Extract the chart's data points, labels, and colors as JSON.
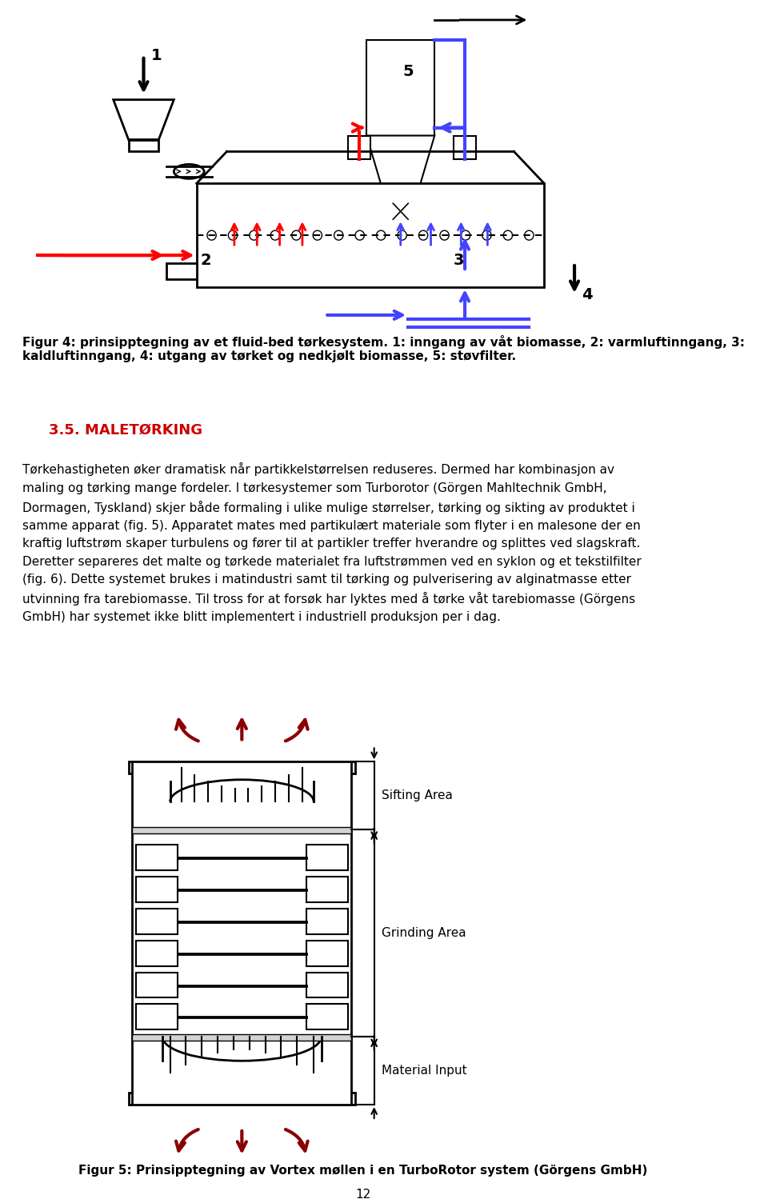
{
  "page_width": 9.6,
  "page_height": 15.04,
  "background_color": "#ffffff",
  "fig4_caption": "Figur 4: prinsipptegning av et fluid-bed tørkesystem. 1: inngang av våt biomasse, 2: varmluftinngang, 3:\nkaldluftinngang, 4: utgang av tørket og nedkjølt biomasse, 5: støvfilter.",
  "section_heading": "3.5. MALETØRKING",
  "section_heading_color": "#cc0000",
  "body_text": "Tørkehastigheten øker dramatisk når partikkelstørrelsen reduseres. Dermed har kombinasjon av\nmaling og tørking mange fordeler. I tørkesystemer som Turborotor (Görgen Mahltechnik GmbH,\nDormagen, Tyskland) skjer både formaling i ulike mulige størrelser, tørking og sikting av produktet i\nsamme apparat (fig. 5). Apparatet mates med partikulært materiale som flyter i en malesone der en\nkraftig luftstrøm skaper turbulens og fører til at partikler treffer hverandre og splittes ved slagskraft.\nDeretter separeres det malte og tørkede materialet fra luftstrømmen ved en syklon og et tekstilfilter\n(fig. 6). Dette systemet brukes i matindustri samt til tørking og pulverisering av alginatmasse etter\nutvinning fra tarebiomasse. Til tross for at forsøk har lyktes med å tørke våt tarebiomasse (Görgens\nGmbH) har systemet ikke blitt implementert i industriell produksjon per i dag.",
  "fig5_caption": "Figur 5: Prinsipptegning av Vortex møllen i en TurboRotor system (Görgens GmbH)",
  "page_number": "12"
}
